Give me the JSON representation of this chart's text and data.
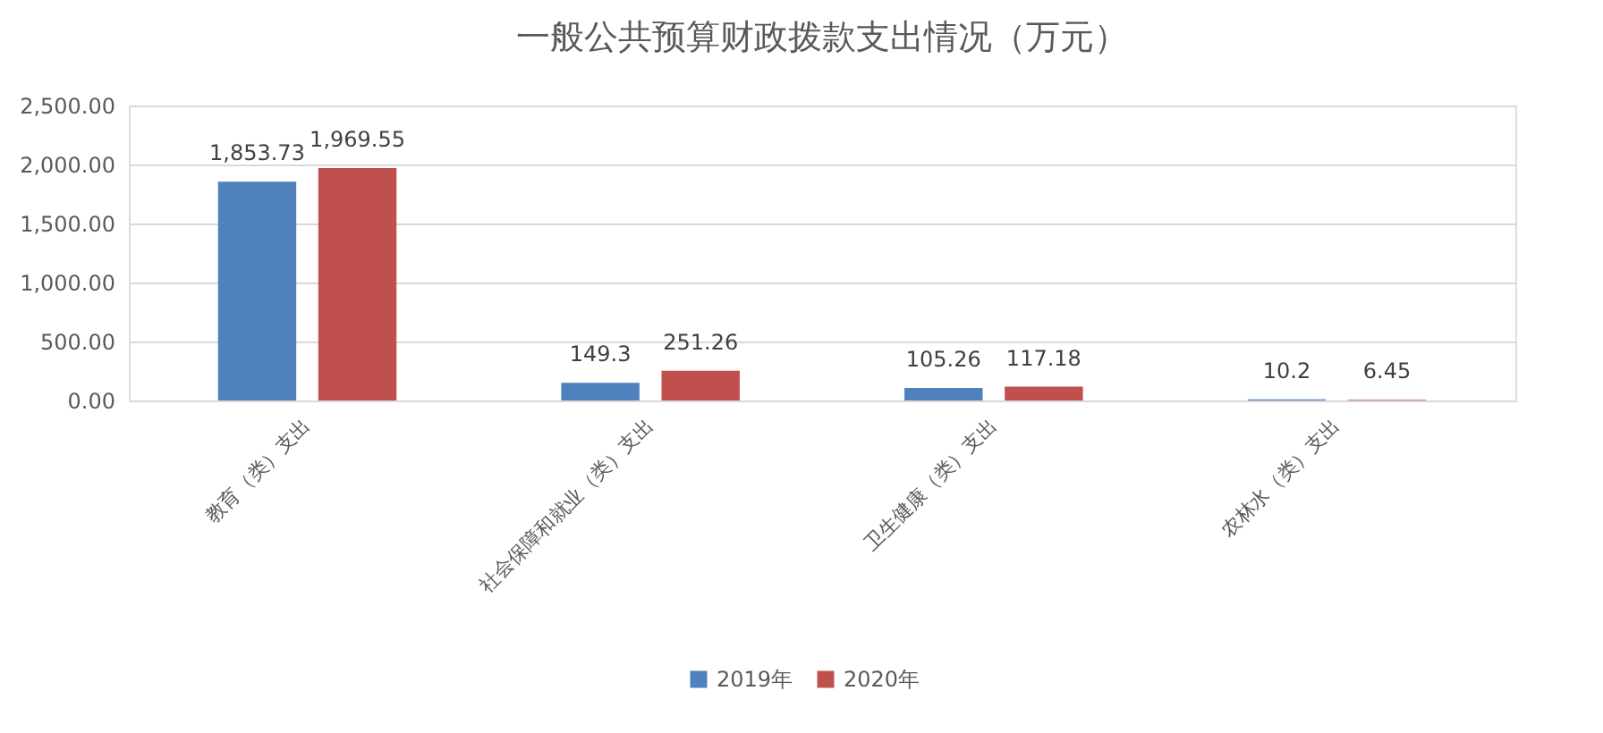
{
  "chart_data": {
    "type": "bar",
    "title": "一般公共预算财政拨款支出情况（万元）",
    "categories": [
      "教育（类）支出",
      "社会保障和就业（类）支出",
      "卫生健康（类）支出",
      "农林水（类）支出"
    ],
    "series": [
      {
        "name": "2019年",
        "color": "#4f81bd",
        "values": [
          1853.73,
          149.3,
          105.26,
          10.2
        ],
        "value_labels": [
          "1,853.73",
          "149.3",
          "105.26",
          "10.2"
        ]
      },
      {
        "name": "2020年",
        "color": "#c0504d",
        "values": [
          1969.55,
          251.26,
          117.18,
          6.45
        ],
        "value_labels": [
          "1,969.55",
          "251.26",
          "117.18",
          "6.45"
        ]
      }
    ],
    "ylim": [
      0,
      2500
    ],
    "yticks": [
      {
        "value": 0,
        "label": "0.00"
      },
      {
        "value": 500,
        "label": "500.00"
      },
      {
        "value": 1000,
        "label": "1,000.00"
      },
      {
        "value": 1500,
        "label": "1,500.00"
      },
      {
        "value": 2000,
        "label": "2,000.00"
      },
      {
        "value": 2500,
        "label": "2,500.00"
      }
    ],
    "grid": "y",
    "legend": "bottom"
  }
}
